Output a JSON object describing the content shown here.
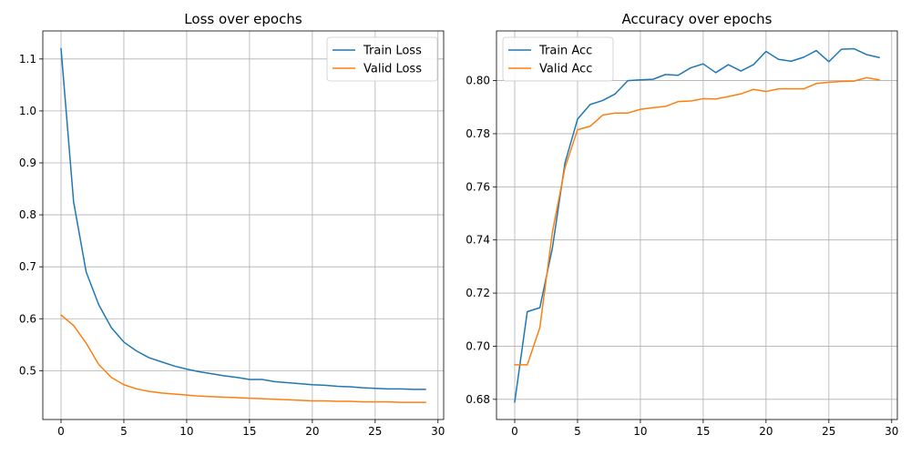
{
  "colors": {
    "series_0": "#1f77b4",
    "series_1": "#ff7f0e",
    "grid": "#b0b0b0"
  },
  "chart_data": [
    {
      "type": "line",
      "title": "Loss over epochs",
      "xlabel": "",
      "ylabel": "",
      "xlim": [
        -1.45,
        30.45
      ],
      "ylim": [
        0.406,
        1.154
      ],
      "xticks": [
        0,
        5,
        10,
        15,
        20,
        25,
        30
      ],
      "yticks": [
        0.5,
        0.6,
        0.7,
        0.8,
        0.9,
        1.0,
        1.1
      ],
      "ytick_labels": [
        "0.5",
        "0.6",
        "0.7",
        "0.8",
        "0.9",
        "1.0",
        "1.1"
      ],
      "grid": true,
      "legend_position": "top-right",
      "x": [
        0,
        1,
        2,
        3,
        4,
        5,
        6,
        7,
        8,
        9,
        10,
        11,
        12,
        13,
        14,
        15,
        16,
        17,
        18,
        19,
        20,
        21,
        22,
        23,
        24,
        25,
        26,
        27,
        28,
        29
      ],
      "series": [
        {
          "name": "Train Loss",
          "values": [
            1.12,
            0.825,
            0.69,
            0.627,
            0.583,
            0.555,
            0.538,
            0.525,
            0.517,
            0.509,
            0.503,
            0.498,
            0.494,
            0.49,
            0.487,
            0.483,
            0.483,
            0.479,
            0.477,
            0.475,
            0.473,
            0.472,
            0.47,
            0.469,
            0.467,
            0.466,
            0.465,
            0.465,
            0.464,
            0.464
          ]
        },
        {
          "name": "Valid Loss",
          "values": [
            0.607,
            0.587,
            0.553,
            0.512,
            0.487,
            0.473,
            0.465,
            0.46,
            0.457,
            0.455,
            0.453,
            0.451,
            0.45,
            0.449,
            0.448,
            0.447,
            0.446,
            0.445,
            0.444,
            0.443,
            0.442,
            0.442,
            0.441,
            0.441,
            0.44,
            0.44,
            0.44,
            0.439,
            0.439,
            0.439
          ]
        }
      ]
    },
    {
      "type": "line",
      "title": "Accuracy over epochs",
      "xlabel": "",
      "ylabel": "",
      "xlim": [
        -1.45,
        30.45
      ],
      "ylim": [
        0.6724,
        0.8187
      ],
      "xticks": [
        0,
        5,
        10,
        15,
        20,
        25,
        30
      ],
      "yticks": [
        0.68,
        0.7,
        0.72,
        0.74,
        0.76,
        0.78,
        0.8
      ],
      "ytick_labels": [
        "0.68",
        "0.70",
        "0.72",
        "0.74",
        "0.76",
        "0.78",
        "0.80"
      ],
      "grid": true,
      "legend_position": "top-left",
      "x": [
        0,
        1,
        2,
        3,
        4,
        5,
        6,
        7,
        8,
        9,
        10,
        11,
        12,
        13,
        14,
        15,
        16,
        17,
        18,
        19,
        20,
        21,
        22,
        23,
        24,
        25,
        26,
        27,
        28,
        29
      ],
      "series": [
        {
          "name": "Train Acc",
          "values": [
            0.679,
            0.713,
            0.7145,
            0.737,
            0.769,
            0.7855,
            0.791,
            0.7925,
            0.795,
            0.8,
            0.8003,
            0.8005,
            0.8023,
            0.802,
            0.8048,
            0.8063,
            0.803,
            0.806,
            0.8036,
            0.806,
            0.811,
            0.808,
            0.8073,
            0.8088,
            0.8113,
            0.8071,
            0.8118,
            0.812,
            0.8098,
            0.8087
          ]
        },
        {
          "name": "Valid Acc",
          "values": [
            0.693,
            0.693,
            0.707,
            0.743,
            0.7672,
            0.7815,
            0.7828,
            0.787,
            0.7878,
            0.7878,
            0.7892,
            0.7898,
            0.7903,
            0.7921,
            0.7923,
            0.7932,
            0.7931,
            0.794,
            0.795,
            0.7967,
            0.7959,
            0.7969,
            0.7969,
            0.7969,
            0.7989,
            0.7994,
            0.7997,
            0.7998,
            0.8011,
            0.8003
          ]
        }
      ]
    }
  ]
}
